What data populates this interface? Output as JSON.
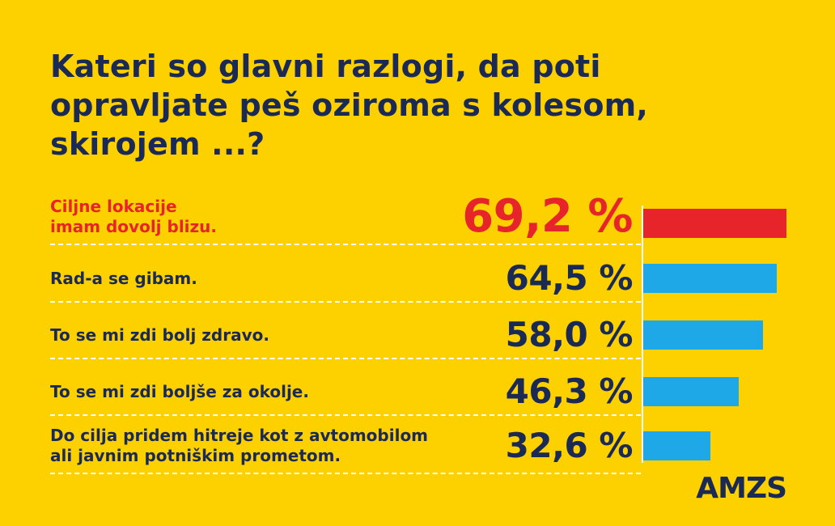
{
  "title_lines": [
    "Kateri so glavni razlogi, da poti",
    "opravljate peš oziroma s kolesom,",
    "skirojem ...?"
  ],
  "chart_data": {
    "type": "bar",
    "orientation": "horizontal",
    "categories": [
      [
        "Ciljne lokacije",
        "imam dovolj blizu."
      ],
      [
        "Rad-a se gibam."
      ],
      [
        "To se mi zdi bolj zdravo."
      ],
      [
        "To se mi zdi boljše za okolje."
      ],
      [
        "Do cilja pridem hitreje kot z avtomobilom",
        "ali javnim potniškim prometom."
      ]
    ],
    "values": [
      69.2,
      64.5,
      58.0,
      46.3,
      32.6
    ],
    "value_labels": [
      "69,2 %",
      "64,5 %",
      "58,0 %",
      "46,3 %",
      "32,6 %"
    ],
    "unit": "%",
    "xlim": [
      0,
      69.2
    ],
    "highlight_index": 0,
    "colors": {
      "highlight": "#E8242B",
      "default": "#1EA8E8"
    },
    "grid": false,
    "legend": "none"
  },
  "brand": "AMZS"
}
